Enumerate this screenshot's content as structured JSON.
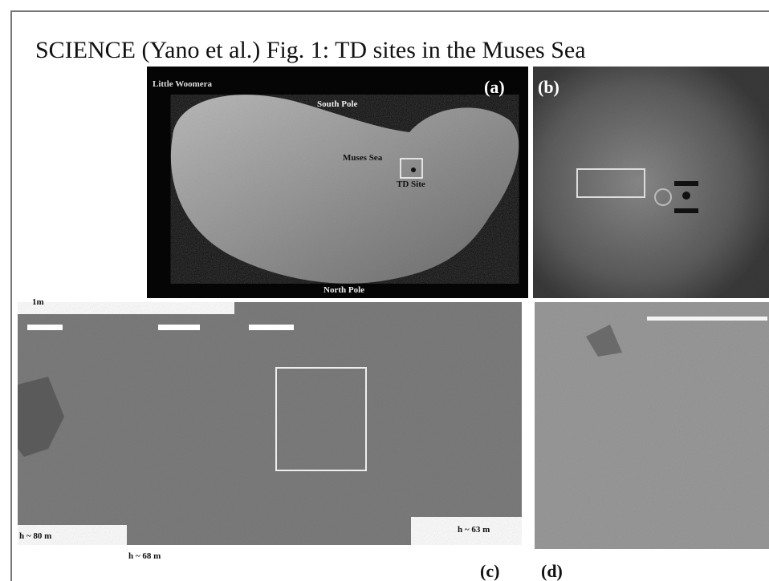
{
  "header": {
    "title": "SCIENCE (Yano et al.)  Fig. 1: TD sites in the Muses Sea"
  },
  "panels": [
    {
      "label": "(a)",
      "annotations": [
        "Little Woomera",
        "South Pole",
        "Muses Sea",
        "TD Site",
        "North Pole"
      ]
    },
    {
      "label": "(b)"
    },
    {
      "label": "(c)",
      "scale": "1m",
      "annotations": [
        "h ~ 80 m",
        "h ~ 68 m",
        "h ~ 63 m"
      ]
    },
    {
      "label": "(d)"
    }
  ]
}
